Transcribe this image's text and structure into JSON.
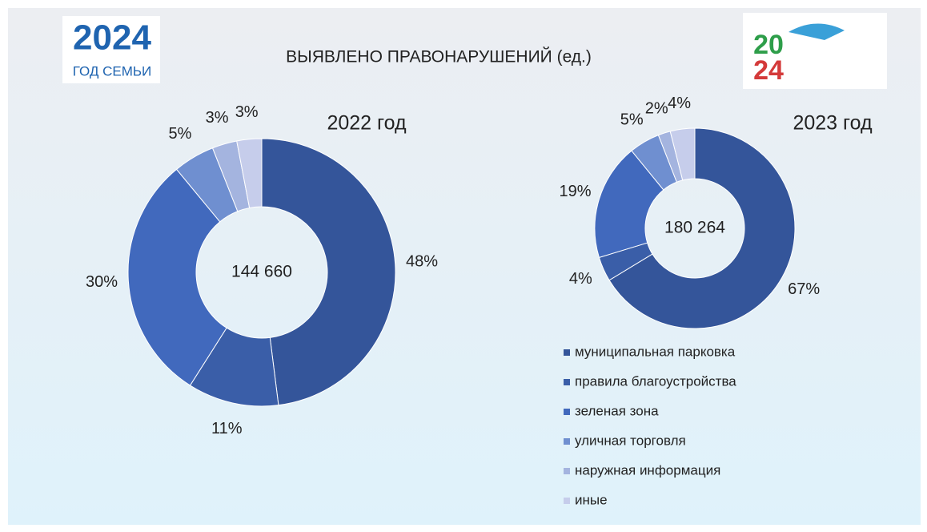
{
  "title": "ВЫЯВЛЕНО ПРАВОНАРУШЕНИЙ (ед.)",
  "logo_left": {
    "number": "2024",
    "text": "ГОД СЕМЬИ"
  },
  "logo_right": {
    "top": "20",
    "bottom": "24"
  },
  "chart_data": [
    {
      "type": "donut",
      "title": "2022 год",
      "center_label": "144 660",
      "values": [
        48,
        11,
        30,
        5,
        3,
        3
      ],
      "value_labels": [
        "48%",
        "11%",
        "30%",
        "5%",
        "3%",
        "3%"
      ],
      "colors": [
        "#34559a",
        "#3a5ea8",
        "#4169bd",
        "#6f8fd0",
        "#a4b4df",
        "#c6cdeb"
      ]
    },
    {
      "type": "donut",
      "title": "2023 год",
      "center_label": "180 264",
      "categories": [
        "муниципальная  парковка",
        "правила благоустройства",
        "зеленая  зона",
        "уличная торговля",
        "наружная информация",
        "иные"
      ],
      "values": [
        67,
        4,
        19,
        5,
        2,
        4
      ],
      "value_labels": [
        "67%",
        "4%",
        "19%",
        "5%",
        "2%",
        "4%"
      ],
      "colors": [
        "#34559a",
        "#3a5ea8",
        "#4169bd",
        "#6f8fd0",
        "#a4b4df",
        "#c6cdeb"
      ]
    }
  ]
}
